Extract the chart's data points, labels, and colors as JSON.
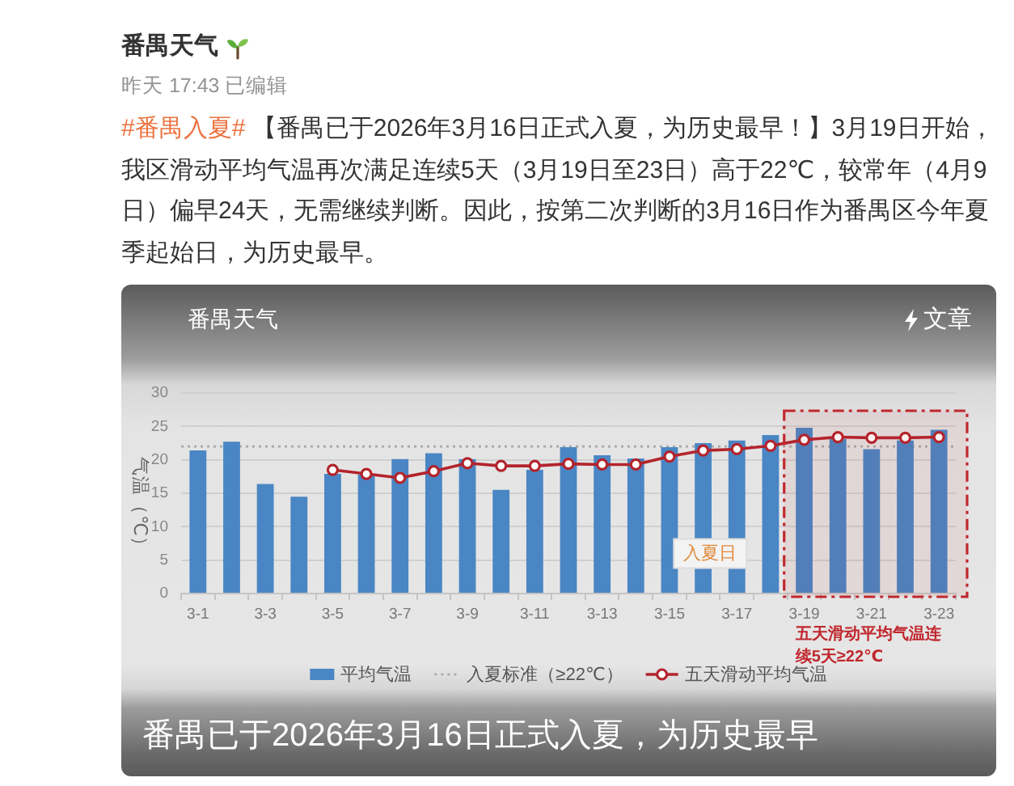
{
  "chart_data": {
    "type": "bar",
    "title": "番禺已于2026年3月16日正式入夏，为历史最早",
    "subtitle": "#番禺入夏# 【番禺已于2026年3月16日正式入夏，为历史最早！】3月19日开始，我区滑动平均气温再次满足连续5天（3月19日至23日）高于22℃，较常年（4月9日）偏早24天，无需继续判断。因此，按第二次判断的3月16日作为番禺区今年夏季起始日，为历史最早。",
    "ylabel": "气温（℃）",
    "annotations": [
      "番禺天气",
      "昨天 17:43 已编辑",
      "番禺天气",
      "文章",
      "入夏日"
    ],
    "categories": [
      "3-1",
      null,
      "3-3",
      null,
      "3-5",
      null,
      "3-7",
      null,
      "3-9",
      null,
      "3-11",
      null,
      "3-13",
      null,
      "3-15",
      null,
      "3-17",
      null,
      "3-19",
      null,
      "3-21",
      null,
      "3-23"
    ],
    "series": [
      {
        "name": "平均气温",
        "color": "#4a86c4",
        "values": [
          21.4,
          22.7,
          16.4,
          14.5,
          17.9,
          17.8,
          20.1,
          21.0,
          20.1,
          15.5,
          18.5,
          21.9,
          20.7,
          20.2,
          21.9,
          22.5,
          22.9,
          23.7,
          24.8,
          23.1,
          21.6,
          22.9,
          24.5
        ]
      },
      {
        "name": "五天滑动平均气温",
        "type": "line",
        "color": "#b3242c",
        "values": [
          null,
          null,
          null,
          null,
          18.5,
          17.9,
          17.3,
          18.3,
          19.5,
          19.1,
          19.1,
          19.4,
          19.3,
          19.3,
          20.5,
          21.4,
          21.6,
          22.1,
          23.0,
          23.4,
          23.3,
          23.3,
          23.4
        ]
      }
    ],
    "ylim": [
      0,
      30
    ],
    "yticks": [
      0,
      5,
      10,
      15,
      20,
      25,
      30
    ],
    "grid": "y",
    "ref_lines": [
      {
        "axis": "y",
        "value": 22,
        "label": "入夏标准（≥22℃）",
        "color": "#a8a8a8",
        "line_style": "dotted"
      }
    ],
    "bands": [
      {
        "axis": "x",
        "from": "3-19",
        "to": "3-23",
        "label": "五天滑动平均气温连续5天≥22℃",
        "color": "#c0282e"
      }
    ],
    "legend": "bottom",
    "marker": "circle"
  }
}
